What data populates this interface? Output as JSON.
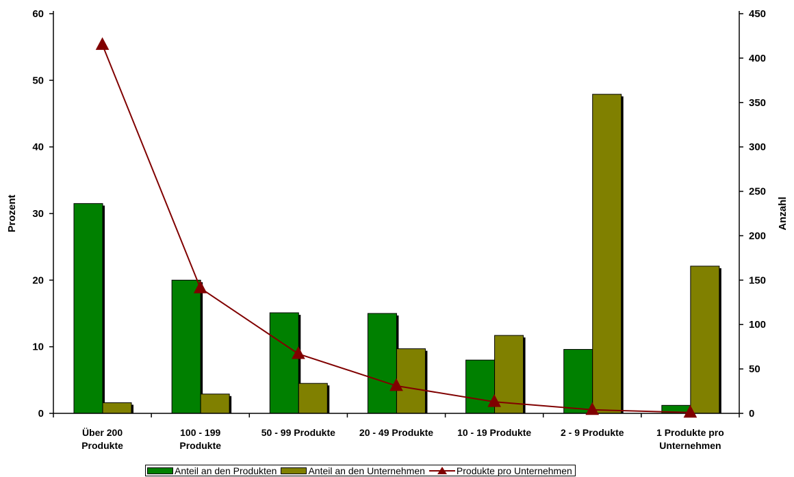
{
  "chart_data": {
    "type": "bar",
    "categories": [
      [
        "Über 200",
        "Produkte"
      ],
      [
        "100 - 199",
        "Produkte"
      ],
      [
        "50 - 99 Produkte"
      ],
      [
        "20 - 49 Produkte"
      ],
      [
        "10 - 19 Produkte"
      ],
      [
        "2 - 9 Produkte"
      ],
      [
        "1 Produkte pro",
        "Unternehmen"
      ]
    ],
    "series": [
      {
        "name": "Anteil an den Produkten",
        "type": "bar",
        "axis": "left",
        "color": "#008000",
        "values": [
          31.5,
          20.0,
          15.1,
          15.0,
          8.0,
          9.6,
          1.2
        ]
      },
      {
        "name": "Anteil an den Unternehmen",
        "type": "bar",
        "axis": "left",
        "color": "#808000",
        "values": [
          1.6,
          2.9,
          4.5,
          9.7,
          11.7,
          47.9,
          22.1
        ]
      },
      {
        "name": "Produkte pro Unternehmen",
        "type": "line",
        "axis": "right",
        "color": "#800000",
        "marker": "triangle",
        "values": [
          415,
          141,
          67,
          31,
          13,
          4,
          1
        ]
      }
    ],
    "ylabel": "Prozent",
    "y2label": "Anzahl",
    "ylim": [
      0,
      60
    ],
    "y2lim": [
      0,
      450
    ],
    "yticks": [
      "0",
      "10",
      "20",
      "30",
      "40",
      "50",
      "60"
    ],
    "y2ticks": [
      "0",
      "50",
      "100",
      "150",
      "200",
      "250",
      "300",
      "350",
      "400",
      "450"
    ],
    "legend_position": "bottom",
    "grid": false
  }
}
